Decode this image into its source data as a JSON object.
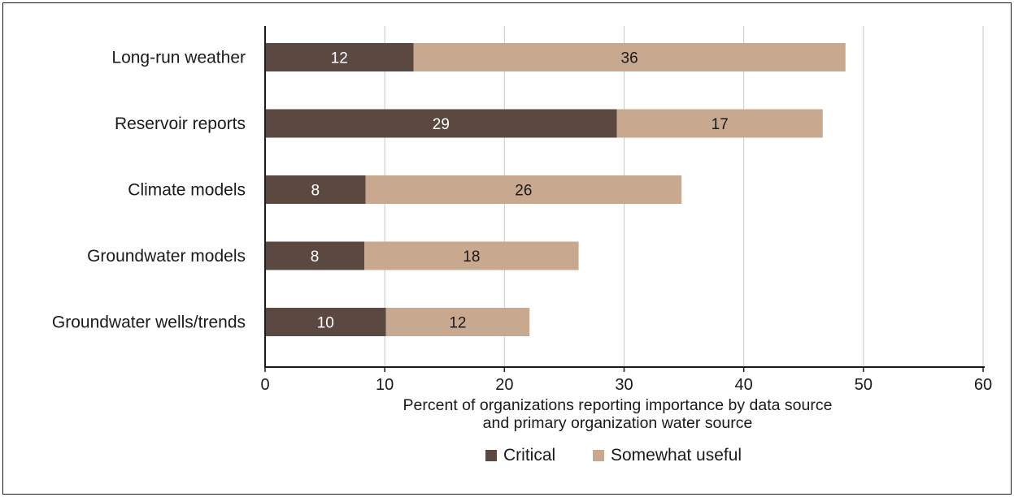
{
  "chart_data": {
    "type": "bar",
    "orientation": "horizontal",
    "stacked": true,
    "categories": [
      "Long-run weather",
      "Reservoir reports",
      "Climate models",
      "Groundwater models",
      "Groundwater wells/trends"
    ],
    "series": [
      {
        "name": "Critical",
        "color": "#5b4840",
        "values": [
          12.4,
          29.4,
          8.4,
          8.3,
          10.1
        ],
        "labels": [
          "12",
          "29",
          "8",
          "8",
          "10"
        ]
      },
      {
        "name": "Somewhat useful",
        "color": "#c8a88e",
        "values": [
          36.1,
          17.2,
          26.4,
          17.9,
          12.0
        ],
        "labels": [
          "36",
          "17",
          "26",
          "18",
          "12"
        ]
      }
    ],
    "xlabel": [
      "Percent of organizations reporting importance by data source",
      "and primary organization water source"
    ],
    "xlim": [
      0,
      60
    ],
    "xticks": [
      "0",
      "10",
      "20",
      "30",
      "40",
      "50",
      "60"
    ],
    "grid": "vertical",
    "legend": "bottom"
  }
}
